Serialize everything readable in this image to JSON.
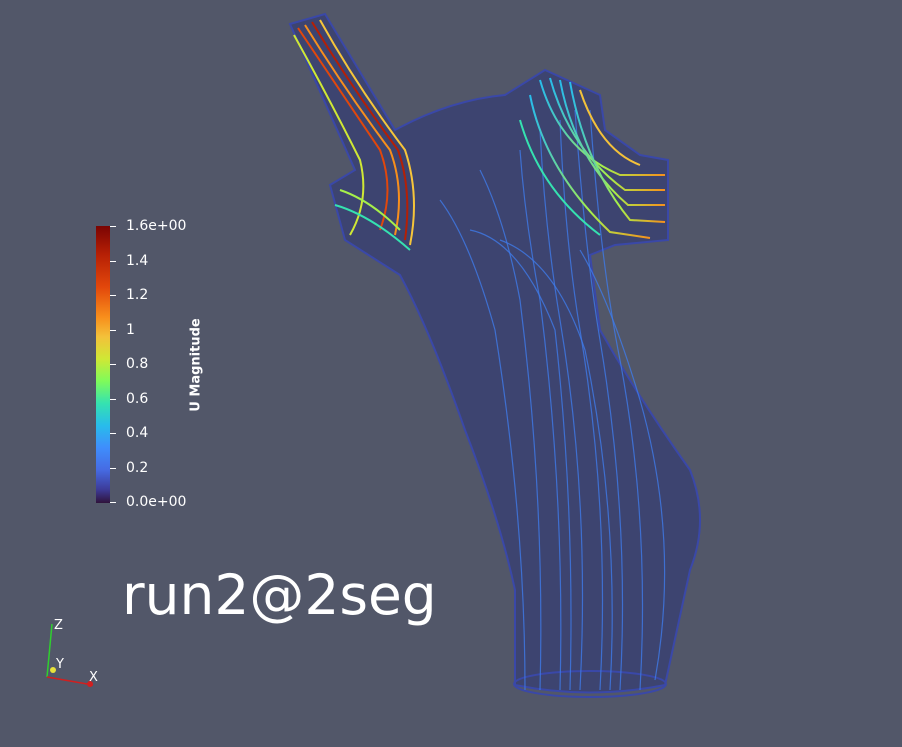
{
  "colorbar": {
    "title": "U Magnitude",
    "ticks": [
      {
        "label": "1.6e+00",
        "value": 1.6
      },
      {
        "label": "1.4",
        "value": 1.4
      },
      {
        "label": "1.2",
        "value": 1.2
      },
      {
        "label": "1",
        "value": 1.0
      },
      {
        "label": "0.8",
        "value": 0.8
      },
      {
        "label": "0.6",
        "value": 0.6
      },
      {
        "label": "0.4",
        "value": 0.4
      },
      {
        "label": "0.2",
        "value": 0.2
      },
      {
        "label": "0.0e+00",
        "value": 0.0
      }
    ],
    "range": [
      0.0,
      1.6
    ],
    "colormap": "turbo"
  },
  "annotation": {
    "text": "run2@2seg"
  },
  "orientation_axes": {
    "x": "X",
    "y": "Y",
    "z": "Z"
  },
  "colors": {
    "background": "#525769",
    "vessel_mesh": "#2a3a8c",
    "text": "#ffffff",
    "axis_x": "#d11f1f",
    "axis_y": "#e8e23a",
    "axis_z": "#2fcf2f"
  }
}
